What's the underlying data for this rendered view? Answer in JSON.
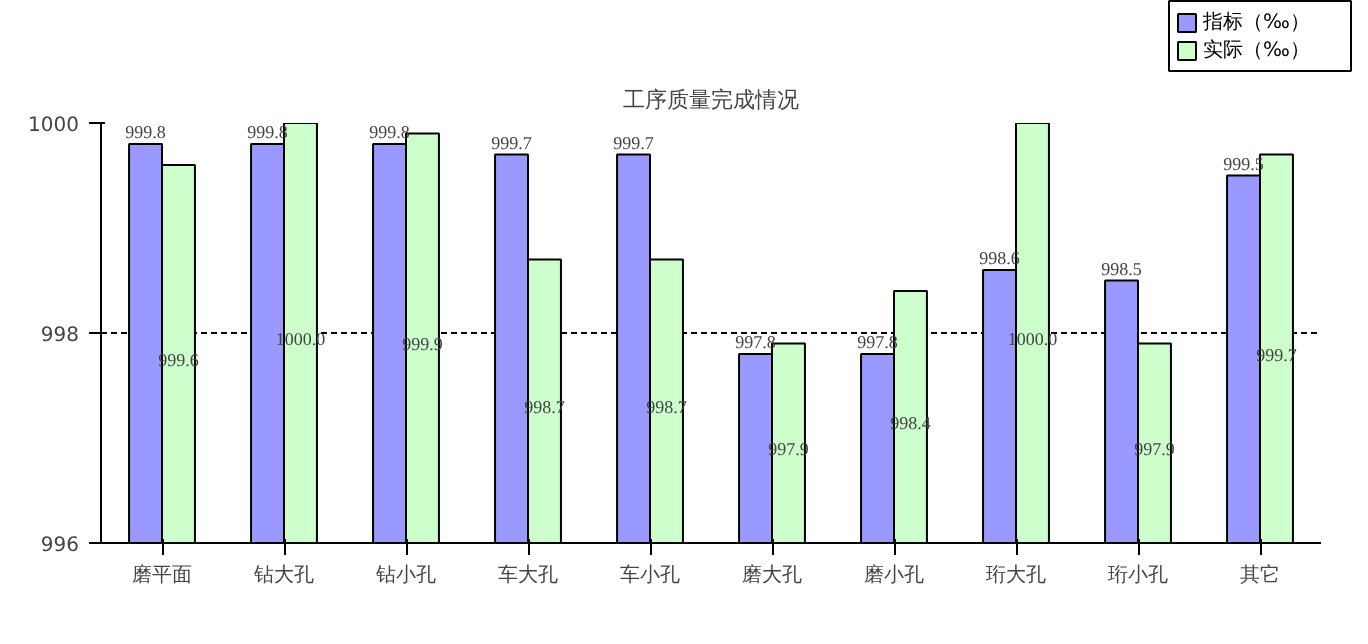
{
  "chart_data": {
    "type": "bar",
    "title": "工序质量完成情况",
    "categories": [
      "磨平面",
      "钻大孔",
      "钻小孔",
      "车大孔",
      "车小孔",
      "磨大孔",
      "磨小孔",
      "珩大孔",
      "珩小孔",
      "其它"
    ],
    "series": [
      {
        "name": "指标（‰）",
        "color": "#9999ff",
        "values": [
          999.8,
          999.8,
          999.8,
          999.7,
          999.7,
          997.8,
          997.8,
          998.6,
          998.5,
          999.5
        ],
        "value_labels": [
          "999.8",
          "999.8",
          "999.8",
          "999.7",
          "999.7",
          "997.8",
          "997.8",
          "998.6",
          "998.5",
          "999.5"
        ]
      },
      {
        "name": "实际（‰）",
        "color": "#ccffcc",
        "values": [
          999.6,
          1000.0,
          999.9,
          998.7,
          998.7,
          997.9,
          998.4,
          1000.0,
          997.9,
          999.7
        ],
        "value_labels": [
          "999.6",
          "1000.0",
          "999.9",
          "998.7",
          "998.7",
          "997.9",
          "998.4",
          "1000.0",
          "997.9",
          "999.7"
        ]
      }
    ],
    "ylim": [
      996,
      1000
    ],
    "yticks": [
      996,
      998,
      1000
    ],
    "grid": "y",
    "legend": "top right"
  }
}
